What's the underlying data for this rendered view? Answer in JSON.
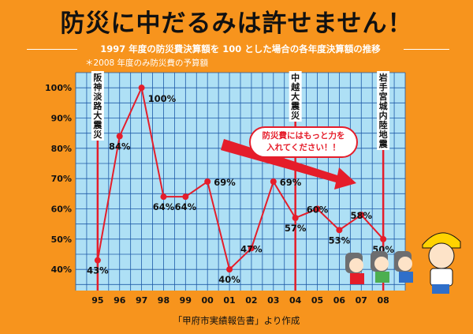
{
  "title": "防災に中だるみは許せません！",
  "subtitle": "1997 年度の防災費決算額を 100 とした場合の各年度決算額の推移",
  "note": "＊2008 年度のみ防災費の予算額",
  "source": "「甲府市実績報告書」より作成",
  "callout": {
    "line1": "防災費にはもっと力を",
    "line2": "入れてください！！"
  },
  "colors": {
    "background": "#f7941d",
    "plot_background": "#aee0f5",
    "grid": "#1e5aa8",
    "line": "#e51d2a",
    "marker": "#e51d2a"
  },
  "chart_data": {
    "type": "line",
    "categories": [
      "95",
      "96",
      "97",
      "98",
      "99",
      "00",
      "01",
      "02",
      "03",
      "04",
      "05",
      "06",
      "07",
      "08"
    ],
    "values": [
      43,
      84,
      100,
      64,
      64,
      69,
      40,
      47,
      69,
      57,
      60,
      53,
      58,
      50
    ],
    "data_labels": [
      "43%",
      "84%",
      "100%",
      "64%",
      "64%",
      "69%",
      "40%",
      "47%",
      "69%",
      "57%",
      "60%",
      "53%",
      "58%",
      "50%"
    ],
    "ytick_labels": [
      "100%",
      "90%",
      "80%",
      "70%",
      "60%",
      "50%",
      "40%"
    ],
    "yticks": [
      100,
      90,
      80,
      70,
      60,
      50,
      40
    ],
    "ylim": [
      33,
      105
    ],
    "grid": true,
    "events": [
      {
        "category": "95",
        "label": "阪神淡路大震災"
      },
      {
        "category": "04",
        "label": "中越大震災"
      },
      {
        "category": "08",
        "label": "岩手宮城内陸地震"
      }
    ]
  }
}
